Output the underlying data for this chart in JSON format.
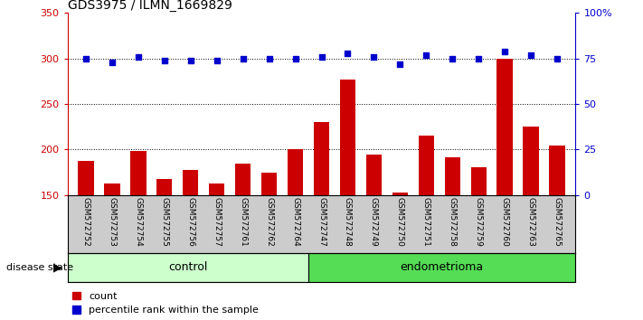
{
  "title": "GDS3975 / ILMN_1669829",
  "categories": [
    "GSM572752",
    "GSM572753",
    "GSM572754",
    "GSM572755",
    "GSM572756",
    "GSM572757",
    "GSM572761",
    "GSM572762",
    "GSM572764",
    "GSM572747",
    "GSM572748",
    "GSM572749",
    "GSM572750",
    "GSM572751",
    "GSM572758",
    "GSM572759",
    "GSM572760",
    "GSM572763",
    "GSM572765"
  ],
  "bar_values": [
    188,
    163,
    199,
    168,
    178,
    163,
    185,
    175,
    200,
    230,
    277,
    195,
    153,
    215,
    192,
    181,
    300,
    225,
    204
  ],
  "dot_values": [
    75,
    73,
    76,
    74,
    74,
    74,
    75,
    75,
    75,
    76,
    78,
    76,
    72,
    77,
    75,
    75,
    79,
    77,
    75
  ],
  "bar_color": "#cc0000",
  "dot_color": "#0000cc",
  "ylim_left": [
    150,
    350
  ],
  "ylim_right": [
    0,
    100
  ],
  "yticks_left": [
    150,
    200,
    250,
    300,
    350
  ],
  "yticks_right": [
    0,
    25,
    50,
    75,
    100
  ],
  "yticklabels_right": [
    "0",
    "25",
    "50",
    "75",
    "100%"
  ],
  "n_control": 9,
  "n_endometrioma": 10,
  "control_color": "#ccffcc",
  "endometrioma_color": "#55dd55",
  "xtick_bg_color": "#cccccc",
  "legend_count_label": "count",
  "legend_pct_label": "percentile rank within the sample",
  "disease_state_label": "disease state",
  "control_text": "control",
  "endometrioma_text": "endometrioma"
}
